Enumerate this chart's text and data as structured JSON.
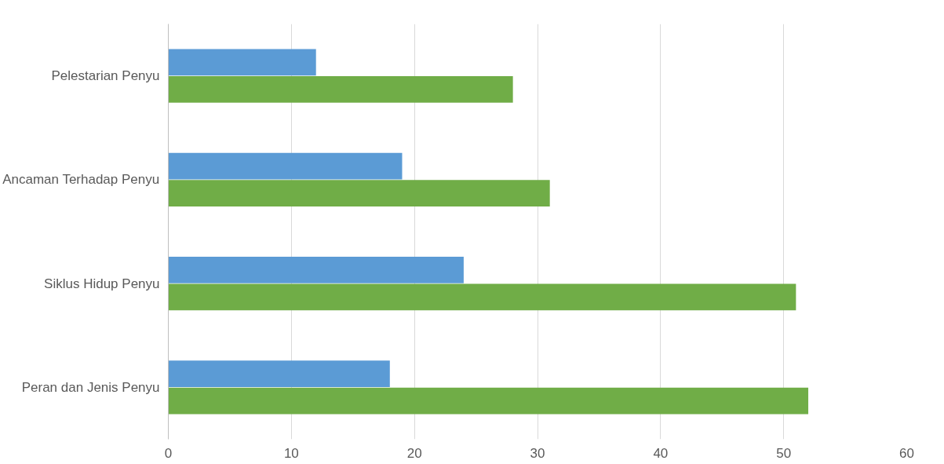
{
  "chart_data": {
    "type": "bar",
    "orientation": "horizontal",
    "categories": [
      "Pelestarian Penyu",
      "Ancaman Terhadap Penyu",
      "Siklus Hidup Penyu",
      "Peran dan Jenis Penyu"
    ],
    "series": [
      {
        "color": "#5b9bd5",
        "values": [
          12,
          19,
          24,
          18
        ]
      },
      {
        "color": "#70ad47",
        "values": [
          28,
          31,
          51,
          52
        ]
      }
    ],
    "xlim": [
      0,
      60
    ],
    "xticks": [
      0,
      10,
      20,
      30,
      40,
      50,
      60
    ],
    "grid": "x"
  }
}
